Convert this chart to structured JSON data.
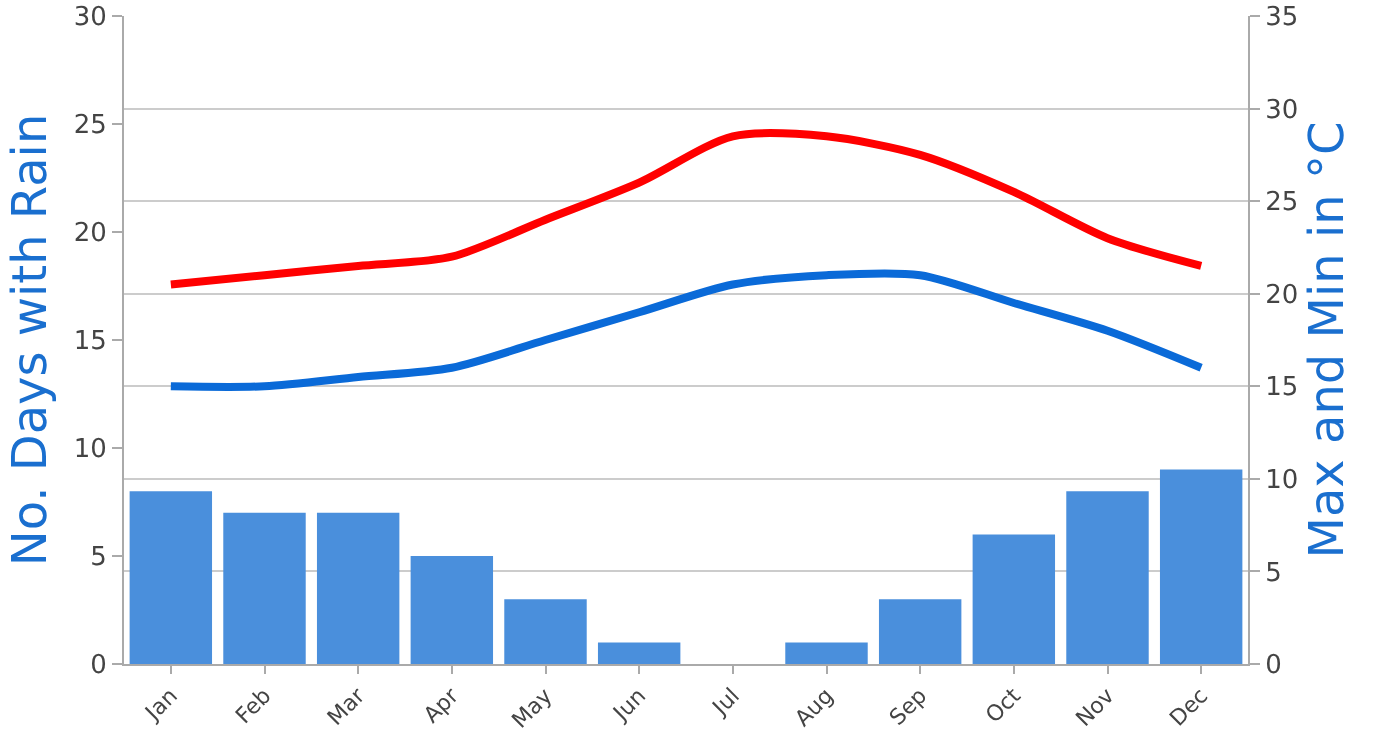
{
  "chart_data": {
    "type": "bar",
    "categories": [
      "Jan",
      "Feb",
      "Mar",
      "Apr",
      "May",
      "Jun",
      "Jul",
      "Aug",
      "Sep",
      "Oct",
      "Nov",
      "Dec"
    ],
    "ylabel": "No. Days with Rain",
    "y2label": "Max and Min in °C",
    "ylim": [
      0,
      30
    ],
    "yticks": [
      0,
      5,
      10,
      15,
      20,
      25,
      30
    ],
    "y2lim": [
      0,
      35
    ],
    "y2ticks": [
      0,
      5,
      10,
      15,
      20,
      25,
      30,
      35
    ],
    "grid": "y2",
    "series": [
      {
        "color": "#4a8fdc",
        "values": [
          8,
          7,
          7,
          5,
          3,
          1,
          0,
          1,
          3,
          6,
          8,
          9
        ]
      },
      {
        "type": "line",
        "axis": "y2",
        "color": "#ff0000",
        "values": [
          20.5,
          21,
          21.5,
          22,
          24,
          26,
          28.5,
          28.5,
          27.5,
          25.5,
          23,
          21.5
        ]
      },
      {
        "type": "line",
        "axis": "y2",
        "color": "#0a6ad8",
        "values": [
          15,
          15,
          15.5,
          16,
          17.5,
          19,
          20.5,
          21,
          21,
          19.5,
          18,
          16
        ]
      }
    ]
  }
}
